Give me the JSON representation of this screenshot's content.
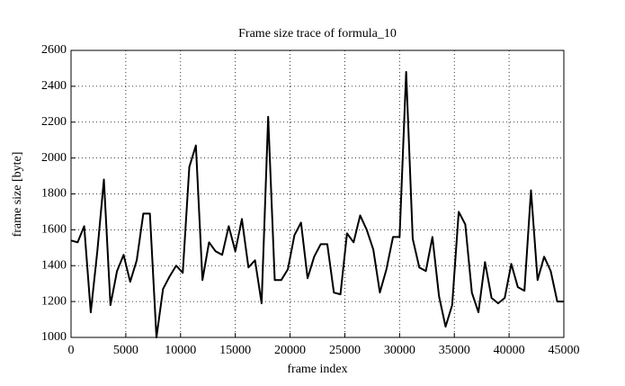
{
  "chart_data": {
    "type": "line",
    "title": "Frame size trace of formula_10",
    "x_label": "frame index",
    "y_label": "frame size [byte]",
    "x": [
      0,
      600,
      1200,
      1800,
      2400,
      3000,
      3600,
      4200,
      4800,
      5400,
      6000,
      6600,
      7200,
      7800,
      8400,
      9000,
      9600,
      10200,
      10800,
      11400,
      12000,
      12600,
      13200,
      13800,
      14400,
      15000,
      15600,
      16200,
      16800,
      17400,
      18000,
      18600,
      19200,
      19800,
      20400,
      21000,
      21600,
      22200,
      22800,
      23400,
      24000,
      24600,
      25200,
      25800,
      26400,
      27000,
      27600,
      28200,
      28800,
      29400,
      30000,
      30600,
      31200,
      31800,
      32400,
      33000,
      33600,
      34200,
      34800,
      35400,
      36000,
      36600,
      37200,
      37800,
      38400,
      39000,
      39600,
      40200,
      40800,
      41400,
      42000,
      42600,
      43200,
      43800,
      44400,
      45000
    ],
    "series": [
      {
        "name": "frame size",
        "color": "#000000",
        "values": [
          1540,
          1530,
          1620,
          1140,
          1480,
          1880,
          1180,
          1370,
          1460,
          1310,
          1430,
          1690,
          1690,
          1000,
          1270,
          1340,
          1400,
          1360,
          1950,
          2070,
          1320,
          1530,
          1480,
          1460,
          1620,
          1480,
          1660,
          1390,
          1430,
          1190,
          2230,
          1320,
          1320,
          1380,
          1570,
          1640,
          1330,
          1450,
          1520,
          1520,
          1250,
          1240,
          1580,
          1530,
          1680,
          1600,
          1490,
          1250,
          1380,
          1560,
          1560,
          2480,
          1550,
          1390,
          1370,
          1560,
          1230,
          1060,
          1180,
          1700,
          1630,
          1250,
          1140,
          1420,
          1220,
          1190,
          1220,
          1410,
          1280,
          1260,
          1820,
          1320,
          1450,
          1370,
          1200,
          1200
        ]
      }
    ],
    "xlim": [
      0,
      45000
    ],
    "xticks": [
      0,
      5000,
      10000,
      15000,
      20000,
      25000,
      30000,
      35000,
      40000,
      45000
    ],
    "ylim": [
      1000,
      2600
    ],
    "yticks": [
      1000,
      1200,
      1400,
      1600,
      1800,
      2000,
      2200,
      2400,
      2600
    ],
    "grid": true
  }
}
